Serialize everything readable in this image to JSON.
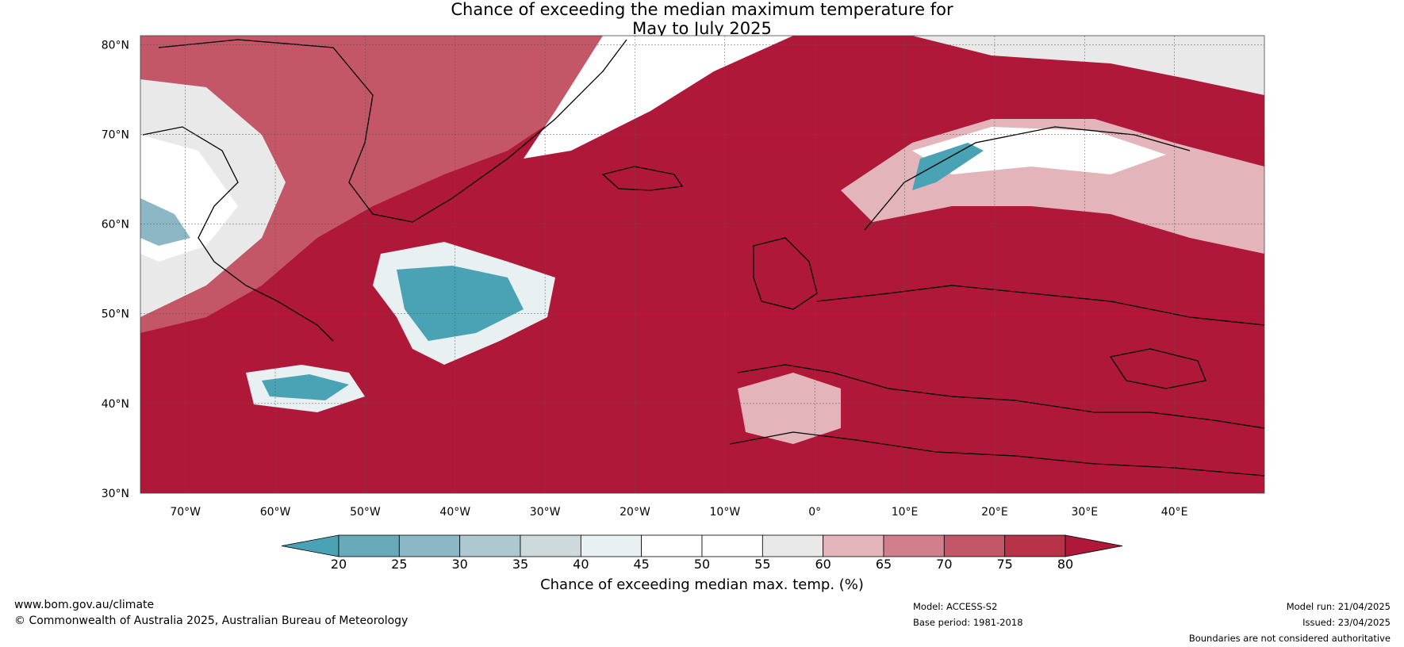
{
  "title": {
    "line1": "Chance of exceeding the median maximum temperature for",
    "line2": "May to July 2025"
  },
  "map": {
    "lat_labels": [
      "80°N",
      "70°N",
      "60°N",
      "50°N",
      "40°N",
      "30°N"
    ],
    "lon_labels": [
      "70°W",
      "60°W",
      "50°W",
      "40°W",
      "30°W",
      "20°W",
      "10°W",
      "0°",
      "10°E",
      "20°E",
      "30°E",
      "40°E"
    ],
    "lat_range": [
      30,
      81
    ],
    "lon_range": [
      -75,
      50
    ]
  },
  "colorbar": {
    "ticks": [
      "20",
      "25",
      "30",
      "35",
      "40",
      "45",
      "50",
      "55",
      "60",
      "65",
      "70",
      "75",
      "80"
    ],
    "label": "Chance of exceeding median max. temp. (%)",
    "colors": [
      "#4aa3b5",
      "#68aaba",
      "#8cb8c6",
      "#adc8d0",
      "#cdd9db",
      "#e8f0f1",
      "#ffffff",
      "#ffffff",
      "#e9e9ea",
      "#e3b5bb",
      "#d17f8c",
      "#c45767",
      "#b83347",
      "#b0183a"
    ]
  },
  "footer": {
    "website": "www.bom.gov.au/climate",
    "copyright": "© Commonwealth of Australia 2025, Australian Bureau of Meteorology",
    "model": "Model: ACCESS-S2",
    "base_period": "Base period: 1981-2018",
    "model_run": "Model run: 21/04/2025",
    "issued": "Issued: 23/04/2025",
    "disclaimer": "Boundaries are not considered authoritative"
  }
}
